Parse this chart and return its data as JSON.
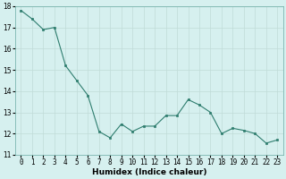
{
  "x": [
    0,
    1,
    2,
    3,
    4,
    5,
    6,
    7,
    8,
    9,
    10,
    11,
    12,
    13,
    14,
    15,
    16,
    17,
    18,
    19,
    20,
    21,
    22,
    23
  ],
  "y": [
    17.8,
    17.4,
    16.9,
    17.0,
    15.2,
    14.5,
    13.8,
    12.1,
    11.8,
    12.45,
    12.1,
    12.35,
    12.35,
    12.85,
    12.85,
    13.6,
    13.35,
    13.0,
    12.0,
    12.25,
    12.15,
    12.0,
    11.55,
    11.7
  ],
  "line_color": "#2e7d6e",
  "marker_color": "#2e7d6e",
  "bg_color": "#d6f0ef",
  "grid_color": "#c0dbd8",
  "xlabel": "Humidex (Indice chaleur)",
  "ylim": [
    11,
    18
  ],
  "xlim": [
    -0.5,
    23.5
  ],
  "yticks": [
    11,
    12,
    13,
    14,
    15,
    16,
    17,
    18
  ],
  "xticks": [
    0,
    1,
    2,
    3,
    4,
    5,
    6,
    7,
    8,
    9,
    10,
    11,
    12,
    13,
    14,
    15,
    16,
    17,
    18,
    19,
    20,
    21,
    22,
    23
  ],
  "label_fontsize": 6.5,
  "tick_fontsize": 5.5
}
